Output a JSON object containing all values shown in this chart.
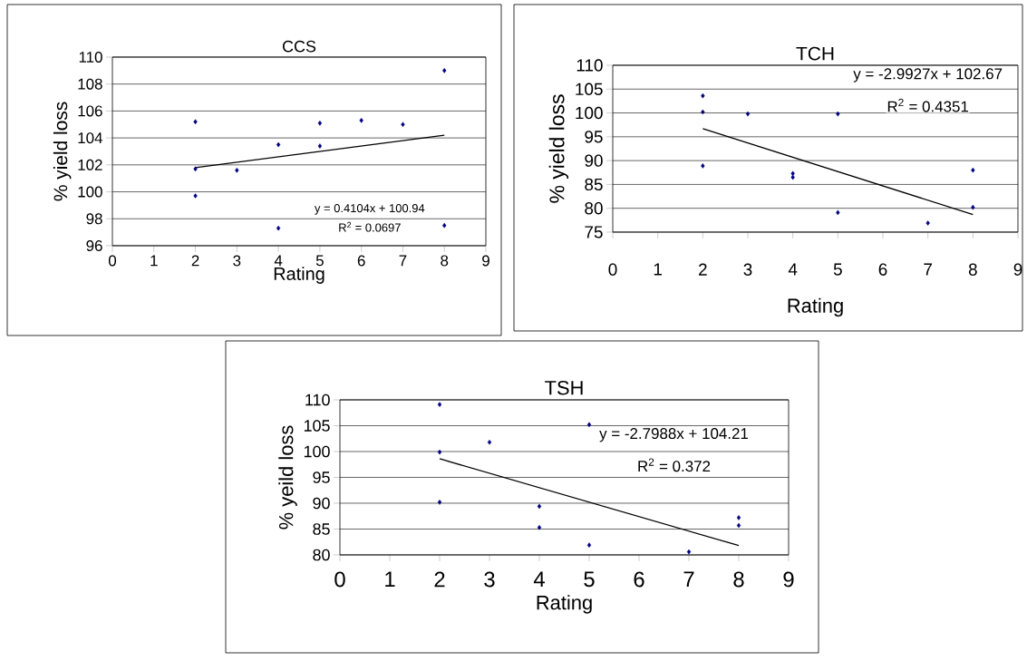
{
  "chart_data": [
    {
      "type": "scatter",
      "title": "CCS",
      "xlabel": "Rating",
      "ylabel": "% yield loss",
      "xlim": [
        0,
        9
      ],
      "xticks": [
        0,
        1,
        2,
        3,
        4,
        5,
        6,
        7,
        8,
        9
      ],
      "ylim": [
        96,
        110
      ],
      "yticks": [
        96,
        98,
        100,
        102,
        104,
        106,
        108,
        110
      ],
      "grid": "y",
      "marker": "diamond",
      "series": [
        {
          "color": "#000080",
          "x": [
            2,
            2,
            2,
            3,
            4,
            4,
            5,
            5,
            6,
            7,
            8,
            8
          ],
          "values": [
            105.2,
            101.7,
            99.7,
            101.6,
            103.5,
            97.3,
            105.1,
            103.4,
            105.3,
            105.0,
            109.0,
            97.5
          ]
        },
        {
          "type": "line",
          "color": "#000000",
          "marker": "none",
          "x": [
            2,
            8
          ],
          "values": [
            101.8,
            104.2
          ]
        }
      ],
      "annotations": [
        "y = 0.4104x + 100.94",
        "R$^{2}$ = 0.0697"
      ]
    },
    {
      "type": "scatter",
      "title": "TCH",
      "xlabel": "Rating",
      "ylabel": "% yield loss",
      "xlim": [
        0,
        9
      ],
      "xticks": [
        0,
        1,
        2,
        3,
        4,
        5,
        6,
        7,
        8,
        9
      ],
      "ylim": [
        75,
        110
      ],
      "yticks": [
        75,
        80,
        85,
        90,
        95,
        100,
        105,
        110
      ],
      "grid": "y",
      "marker": "diamond",
      "series": [
        {
          "color": "#000080",
          "x": [
            2,
            2,
            2,
            3,
            4,
            4,
            5,
            5,
            7,
            8,
            8
          ],
          "values": [
            103.6,
            100.2,
            88.9,
            99.8,
            87.3,
            86.5,
            99.8,
            79.1,
            76.9,
            88.0,
            80.2
          ]
        },
        {
          "type": "line",
          "color": "#000000",
          "marker": "none",
          "x": [
            2,
            8
          ],
          "values": [
            96.7,
            78.7
          ]
        }
      ],
      "annotations": [
        "y = -2.9927x + 102.67",
        "R$^{2}$ = 0.4351"
      ]
    },
    {
      "type": "scatter",
      "title": "TSH",
      "xlabel": "Rating",
      "ylabel": "% yeild loss",
      "xlim": [
        0,
        9
      ],
      "xticks": [
        0,
        1,
        2,
        3,
        4,
        5,
        6,
        7,
        8,
        9
      ],
      "ylim": [
        80,
        110
      ],
      "yticks": [
        80,
        85,
        90,
        95,
        100,
        105,
        110
      ],
      "grid": "y",
      "marker": "diamond",
      "series": [
        {
          "color": "#000080",
          "x": [
            2,
            2,
            2,
            3,
            4,
            4,
            5,
            5,
            7,
            8,
            8
          ],
          "values": [
            109.1,
            99.9,
            90.2,
            101.8,
            89.4,
            85.3,
            105.2,
            81.9,
            80.6,
            87.2,
            85.7
          ]
        },
        {
          "type": "line",
          "color": "#000000",
          "marker": "none",
          "x": [
            2,
            8
          ],
          "values": [
            98.6,
            81.8
          ]
        }
      ],
      "annotations": [
        "y = -2.7988x + 104.21",
        "R$^{2}$ = 0.372"
      ]
    }
  ]
}
